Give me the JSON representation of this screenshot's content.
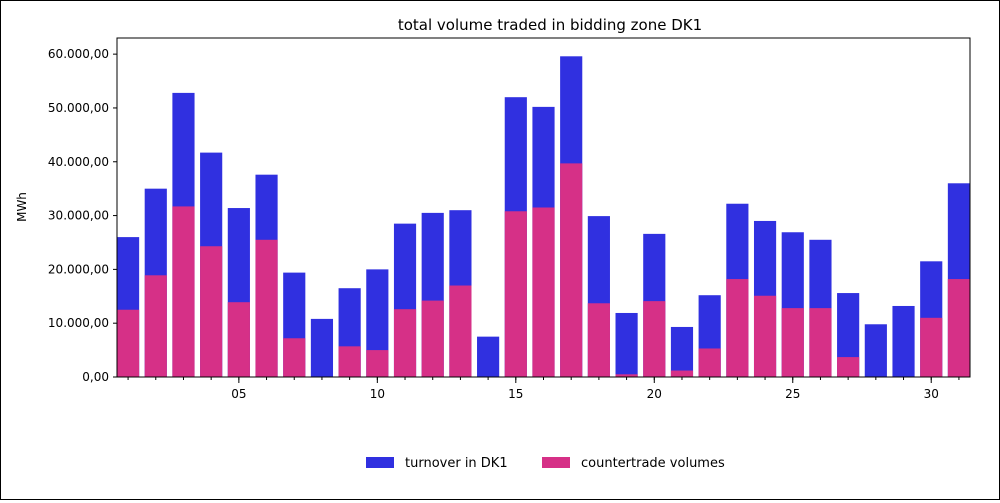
{
  "chart_data": {
    "type": "bar",
    "title": "total volume traded in bidding zone DK1",
    "xlabel": "",
    "ylabel": "MWh",
    "ylim": [
      0,
      63000
    ],
    "xlim": [
      0.6,
      31.4
    ],
    "y_ticks": [
      0,
      10000,
      20000,
      30000,
      40000,
      50000,
      60000
    ],
    "y_tick_labels": [
      "0,00",
      "10.000,00",
      "20.000,00",
      "30.000,00",
      "40.000,00",
      "50.000,00",
      "60.000,00"
    ],
    "x_ticks": [
      5,
      10,
      15,
      20,
      25,
      30
    ],
    "x_tick_labels": [
      "05",
      "10",
      "15",
      "20",
      "25",
      "30"
    ],
    "categories": [
      1,
      2,
      3,
      4,
      5,
      6,
      7,
      8,
      9,
      10,
      11,
      12,
      13,
      14,
      15,
      16,
      17,
      18,
      19,
      20,
      21,
      22,
      23,
      24,
      25,
      26,
      27,
      28,
      29,
      30,
      31
    ],
    "series": [
      {
        "name": "turnover in DK1",
        "color": "#3030e0",
        "values": [
          26000,
          35000,
          52800,
          41700,
          31400,
          37600,
          19400,
          10800,
          16500,
          20000,
          28500,
          30500,
          31000,
          7500,
          52000,
          50200,
          59600,
          29900,
          11900,
          26600,
          9300,
          15200,
          32200,
          29000,
          26900,
          25500,
          15600,
          9800,
          13200,
          21500,
          36000
        ]
      },
      {
        "name": "countertrade volumes",
        "color": "#d63087",
        "values": [
          12500,
          18900,
          31700,
          24300,
          13900,
          25500,
          7200,
          0,
          5700,
          5000,
          12600,
          14200,
          17000,
          0,
          30800,
          31500,
          39700,
          13700,
          500,
          14100,
          1200,
          5300,
          18200,
          15100,
          12800,
          12800,
          3700,
          0,
          0,
          11000,
          18200
        ]
      }
    ],
    "legend_position": "bottom-center",
    "grid": false
  }
}
